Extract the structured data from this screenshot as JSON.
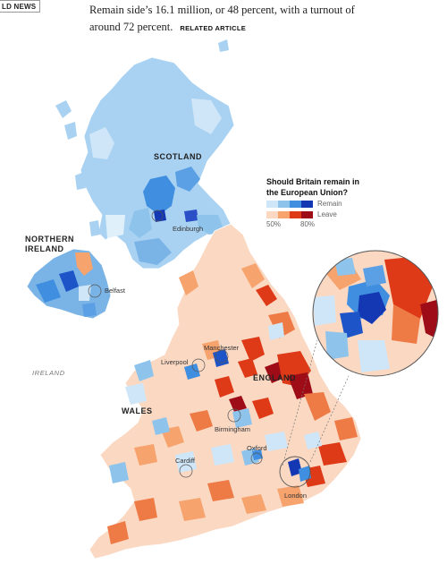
{
  "header": {
    "section_tag": "LD NEWS",
    "lede_line1": "Remain side’s 16.1 million, or 48 percent, with a turnout of",
    "lede_line2": "around 72 percent.",
    "related_link": "RELATED ARTICLE"
  },
  "legend": {
    "title_line1": "Should Britain remain in",
    "title_line2": "the European Union?",
    "remain_label": "Remain",
    "leave_label": "Leave",
    "tick_min": "50%",
    "tick_max": "80%",
    "remain_colors": [
      "#cfe6f8",
      "#8ec4ec",
      "#3f8ee0",
      "#1437b3"
    ],
    "leave_colors": [
      "#fbd8c2",
      "#f6a36e",
      "#de3a18",
      "#9e0c18"
    ]
  },
  "map": {
    "regions": {
      "scotland": "SCOTLAND",
      "northern_ireland_line1": "NORTHERN",
      "northern_ireland_line2": "IRELAND",
      "wales": "WALES",
      "england": "ENGLAND"
    },
    "cities": {
      "edinburgh": "Edinburgh",
      "belfast": "Belfast",
      "manchester": "Manchester",
      "liverpool": "Liverpool",
      "birmingham": "Birmingham",
      "oxford": "Oxford",
      "cardiff": "Cardiff",
      "london": "London"
    },
    "sea_labels": {
      "ireland": "IRELAND"
    }
  }
}
